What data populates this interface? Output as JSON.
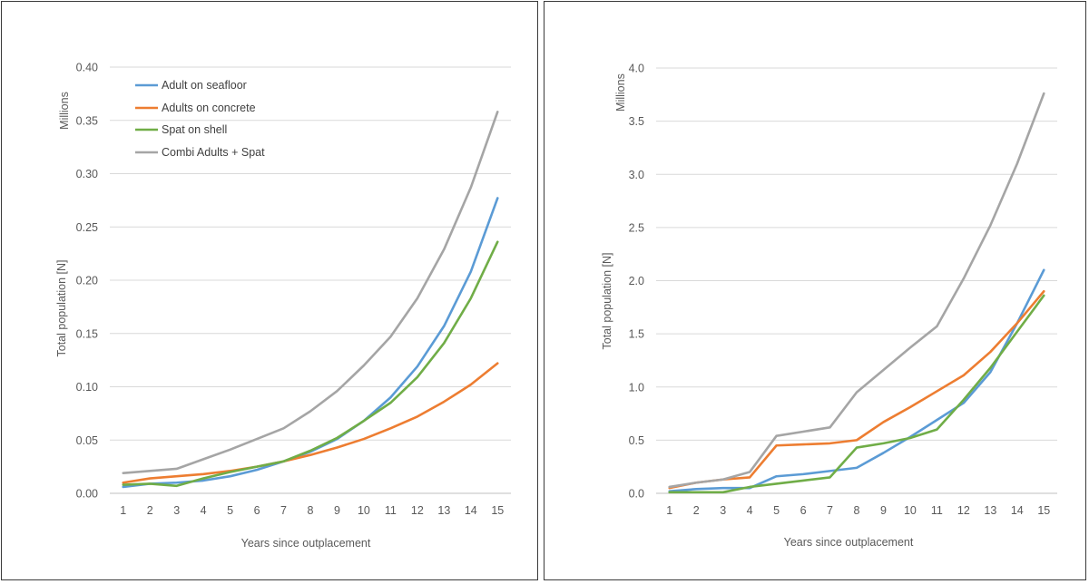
{
  "colors": {
    "blue": "#5b9bd5",
    "orange": "#ed7d31",
    "green": "#70ad47",
    "gray": "#a5a5a5"
  },
  "chart_data": [
    {
      "type": "line",
      "xlabel": "Years since outplacement",
      "ylabel": "Total population [N]",
      "unit_label": "Millions",
      "x": [
        1,
        2,
        3,
        4,
        5,
        6,
        7,
        8,
        9,
        10,
        11,
        12,
        13,
        14,
        15
      ],
      "ylim": [
        0,
        0.4
      ],
      "yticks": [
        "0.00",
        "0.05",
        "0.10",
        "0.15",
        "0.20",
        "0.25",
        "0.30",
        "0.35",
        "0.40"
      ],
      "grid": true,
      "legend": "top-left",
      "series": [
        {
          "name": "Adult on seafloor",
          "color": "#5b9bd5",
          "values": [
            0.006,
            0.009,
            0.01,
            0.012,
            0.016,
            0.022,
            0.03,
            0.039,
            0.051,
            0.068,
            0.09,
            0.119,
            0.157,
            0.208,
            0.277
          ]
        },
        {
          "name": "Adults on concrete",
          "color": "#ed7d31",
          "values": [
            0.01,
            0.014,
            0.016,
            0.018,
            0.021,
            0.025,
            0.03,
            0.036,
            0.043,
            0.051,
            0.061,
            0.072,
            0.086,
            0.102,
            0.122
          ]
        },
        {
          "name": "Spat on shell",
          "color": "#70ad47",
          "values": [
            0.008,
            0.009,
            0.007,
            0.014,
            0.02,
            0.025,
            0.03,
            0.04,
            0.052,
            0.068,
            0.085,
            0.109,
            0.141,
            0.183,
            0.236
          ]
        },
        {
          "name": "Combi Adults + Spat",
          "color": "#a5a5a5",
          "values": [
            0.019,
            0.021,
            0.023,
            0.032,
            0.041,
            0.051,
            0.061,
            0.077,
            0.096,
            0.12,
            0.147,
            0.183,
            0.229,
            0.287,
            0.358
          ]
        }
      ]
    },
    {
      "type": "line",
      "xlabel": "Years since outplacement",
      "ylabel": "Total population [N]",
      "unit_label": "Millions",
      "x": [
        1,
        2,
        3,
        4,
        5,
        6,
        7,
        8,
        9,
        10,
        11,
        12,
        13,
        14,
        15
      ],
      "ylim": [
        0,
        4.0
      ],
      "yticks": [
        "0.0",
        "0.5",
        "1.0",
        "1.5",
        "2.0",
        "2.5",
        "3.0",
        "3.5",
        "4.0"
      ],
      "grid": true,
      "legend": "none",
      "series": [
        {
          "color": "#5b9bd5",
          "values": [
            0.02,
            0.04,
            0.05,
            0.05,
            0.16,
            0.18,
            0.21,
            0.24,
            0.38,
            0.53,
            0.69,
            0.85,
            1.14,
            1.6,
            2.1
          ]
        },
        {
          "color": "#ed7d31",
          "values": [
            0.05,
            0.1,
            0.13,
            0.15,
            0.45,
            0.46,
            0.47,
            0.5,
            0.67,
            0.81,
            0.96,
            1.11,
            1.33,
            1.6,
            1.9
          ]
        },
        {
          "color": "#70ad47",
          "values": [
            0.01,
            0.01,
            0.01,
            0.06,
            0.09,
            0.12,
            0.15,
            0.43,
            0.47,
            0.52,
            0.6,
            0.88,
            1.18,
            1.52,
            1.86
          ]
        },
        {
          "color": "#a5a5a5",
          "values": [
            0.06,
            0.1,
            0.13,
            0.2,
            0.54,
            0.58,
            0.62,
            0.95,
            1.16,
            1.37,
            1.57,
            2.02,
            2.52,
            3.1,
            3.76
          ]
        }
      ]
    }
  ]
}
